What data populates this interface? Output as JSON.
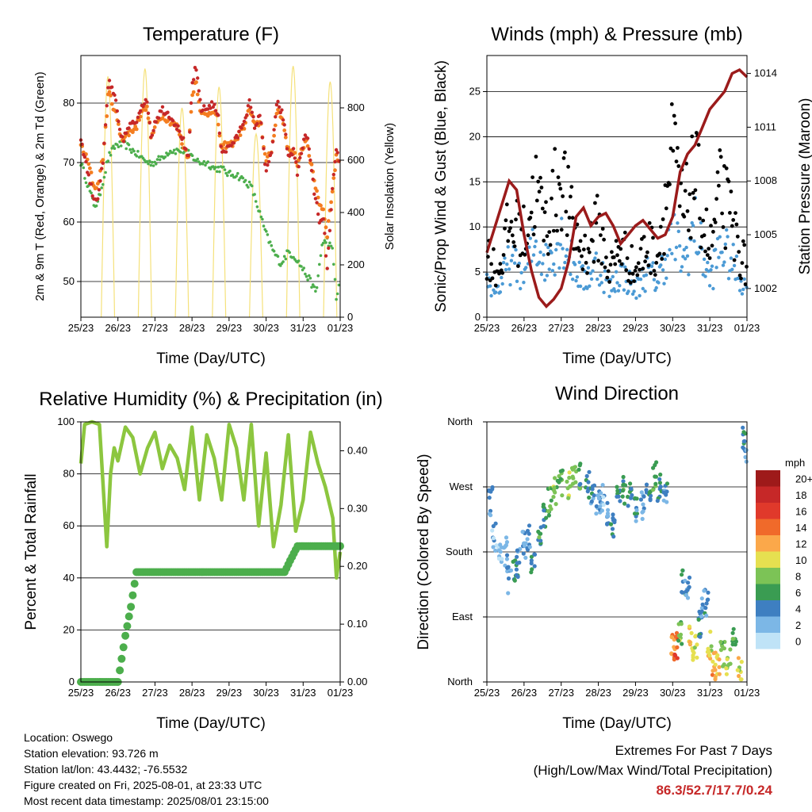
{
  "panels": {
    "temperature": {
      "title": "Temperature (F)",
      "ylabel": "2m & 9m T (Red, Orange) & 2m Td (Green)",
      "y2label": "Solar Insolation (Yellow)",
      "xlabel": "Time (Day/UTC)"
    },
    "winds": {
      "title": "Winds (mph) & Pressure (mb)",
      "ylabel": "Sonic/Prop Wind & Gust (Blue, Black)",
      "y2label": "Station Pressure (Maroon)",
      "xlabel": "Time (Day/UTC)"
    },
    "humidity": {
      "title": "Relative Humidity (%) & Precipitation (in)",
      "ylabel": "Percent & Total Rainfall",
      "xlabel": "Time (Day/UTC)"
    },
    "direction": {
      "title": "Wind Direction",
      "ylabel": "Direction (Colored By Speed)",
      "xlabel": "Time (Day/UTC)",
      "legend_title": "mph",
      "legend_labels": [
        "20+",
        "18",
        "16",
        "14",
        "12",
        "10",
        "8",
        "6",
        "4",
        "2",
        "0"
      ],
      "legend_colors": [
        "#9e1a1a",
        "#c62828",
        "#e0392b",
        "#f06a2a",
        "#fba84a",
        "#e6e050",
        "#7cc356",
        "#3a9c52",
        "#3e7fc1",
        "#7cb7e6",
        "#bfe3f7"
      ]
    }
  },
  "colors": {
    "temp_2m": "#c62828",
    "temp_9m": "#f47d20",
    "dewpoint": "#4cae4c",
    "solar": "#f5e17a",
    "wind": "#4b9ad5",
    "gust": "#000000",
    "pressure": "#9b1b1b",
    "rh": "#8cc63f",
    "precip": "#4cae4c"
  },
  "info": {
    "location": "Location: Oswego",
    "elevation": "Station elevation: 93.726 m",
    "latlon": "Station lat/lon: 43.4432; -76.5532",
    "created": "Figure created on Fri, 2025-08-01, at 23:33 UTC",
    "recent": "Most recent data timestamp: 2025/08/01 23:15:00"
  },
  "extremes": {
    "title": "Extremes For Past 7 Days",
    "subtitle": "(High/Low/Max Wind/Total Precipitation)",
    "values": "86.3/52.7/17.7/0.24"
  },
  "chart_data": [
    {
      "type": "line",
      "title": "Temperature (F)",
      "xlabel": "Time (Day/UTC)",
      "ylabel": "2m & 9m T (Red, Orange) & 2m Td (Green)",
      "y2label": "Solar Insolation (Yellow)",
      "x_ticks": [
        "25/23",
        "26/23",
        "27/23",
        "28/23",
        "29/23",
        "30/23",
        "31/23",
        "01/23"
      ],
      "ylim": [
        44,
        88
      ],
      "y_ticks": [
        50,
        60,
        70,
        80
      ],
      "y2lim": [
        0,
        1000
      ],
      "y2_ticks": [
        0,
        200,
        400,
        600,
        800
      ],
      "x_day_range": [
        0,
        7
      ],
      "series": [
        {
          "name": "2m T",
          "x": [
            0,
            0.2,
            0.35,
            0.45,
            0.6,
            0.75,
            0.85,
            0.95,
            1.05,
            1.15,
            1.3,
            1.5,
            1.65,
            1.8,
            1.9,
            2.0,
            2.2,
            2.4,
            2.6,
            2.75,
            2.9,
            3.0,
            3.1,
            3.25,
            3.4,
            3.55,
            3.7,
            3.8,
            3.9,
            4.05,
            4.2,
            4.4,
            4.55,
            4.7,
            4.85,
            5.0,
            5.15,
            5.3,
            5.45,
            5.6,
            5.75,
            5.85,
            5.95,
            6.1,
            6.2,
            6.3,
            6.45,
            6.55,
            6.65,
            6.8,
            6.9,
            7.0
          ],
          "y": [
            74,
            68,
            64,
            64,
            70,
            84,
            82,
            80,
            75,
            74,
            76,
            77,
            80,
            80,
            74,
            77,
            79,
            78,
            76,
            74,
            70,
            83,
            86,
            79,
            79,
            80,
            78,
            72,
            72,
            73,
            74,
            77,
            80,
            76,
            78,
            68,
            72,
            80,
            78,
            71,
            72,
            68,
            72,
            75,
            70,
            65,
            60,
            60,
            52,
            66,
            72,
            70
          ]
        },
        {
          "name": "9m T",
          "x": [
            0,
            0.2,
            0.35,
            0.45,
            0.6,
            0.75,
            0.85,
            0.95,
            1.05,
            1.15,
            1.3,
            1.5,
            1.65,
            1.8,
            1.9,
            2.0,
            2.2,
            2.4,
            2.6,
            2.75,
            2.9,
            3.0,
            3.1,
            3.25,
            3.4,
            3.55,
            3.7,
            3.8,
            3.9,
            4.05,
            4.2,
            4.4,
            4.55,
            4.7,
            4.85,
            5.0,
            5.15,
            5.3,
            5.45,
            5.6,
            5.75,
            5.85,
            5.95,
            6.1,
            6.2,
            6.3,
            6.45,
            6.55,
            6.65,
            6.8,
            6.9,
            7.0
          ],
          "y": [
            73,
            70,
            66,
            66,
            71,
            82,
            80,
            78,
            75,
            74,
            75,
            76,
            79,
            79,
            74,
            76,
            78,
            77,
            76,
            73,
            71,
            81,
            84,
            78,
            78,
            79,
            77,
            72,
            73,
            73,
            74,
            76,
            79,
            76,
            77,
            70,
            72,
            79,
            77,
            72,
            72,
            69,
            72,
            74,
            70,
            67,
            63,
            62,
            58,
            66,
            71,
            70
          ]
        },
        {
          "name": "2m Td",
          "x": [
            0,
            0.2,
            0.35,
            0.45,
            0.6,
            0.75,
            0.95,
            1.2,
            1.4,
            1.6,
            1.8,
            2.0,
            2.2,
            2.4,
            2.6,
            2.8,
            3.0,
            3.2,
            3.4,
            3.6,
            3.8,
            4.0,
            4.2,
            4.4,
            4.6,
            4.8,
            5.0,
            5.2,
            5.4,
            5.6,
            5.8,
            6.0,
            6.2,
            6.35,
            6.5,
            6.65,
            6.8,
            6.9,
            7.0
          ],
          "y": [
            70,
            66,
            63,
            63,
            67,
            71,
            73,
            73,
            72,
            71,
            70,
            70,
            71,
            72,
            72,
            72,
            71,
            70,
            70,
            69,
            69,
            68,
            68,
            67,
            66,
            62,
            58,
            55,
            53,
            55,
            54,
            52,
            50,
            48,
            56,
            57,
            55,
            47,
            50
          ]
        }
      ]
    },
    {
      "type": "scatter",
      "title": "Winds (mph) & Pressure (mb)",
      "xlabel": "Time (Day/UTC)",
      "ylabel": "Sonic/Prop Wind & Gust (Blue, Black)",
      "y2label": "Station Pressure (Maroon)",
      "x_ticks": [
        "25/23",
        "26/23",
        "27/23",
        "28/23",
        "29/23",
        "30/23",
        "31/23",
        "01/23"
      ],
      "ylim": [
        0,
        29
      ],
      "y_ticks": [
        0,
        5,
        10,
        15,
        20,
        25
      ],
      "y2lim": [
        1000.4,
        1015
      ],
      "y2_ticks": [
        1002,
        1005,
        1008,
        1011,
        1014
      ],
      "series": [
        {
          "name": "Station Pressure",
          "x": [
            0,
            0.3,
            0.6,
            0.8,
            1.0,
            1.2,
            1.4,
            1.6,
            1.8,
            2.0,
            2.2,
            2.4,
            2.6,
            2.8,
            3.0,
            3.2,
            3.4,
            3.6,
            3.8,
            4.0,
            4.2,
            4.4,
            4.6,
            4.8,
            5.0,
            5.2,
            5.4,
            5.6,
            5.8,
            6.0,
            6.2,
            6.4,
            6.6,
            6.8,
            7.0
          ],
          "y": [
            1004,
            1006,
            1008,
            1007.5,
            1005,
            1003,
            1001.5,
            1001,
            1001.4,
            1002,
            1003.5,
            1006,
            1006.5,
            1005.5,
            1006,
            1006.2,
            1005.5,
            1004.5,
            1005,
            1005.5,
            1005.8,
            1005.3,
            1004.8,
            1005,
            1006,
            1008.5,
            1009.5,
            1010,
            1011,
            1012,
            1012.5,
            1013,
            1014,
            1014.2,
            1013.8
          ]
        }
      ]
    },
    {
      "type": "line",
      "title": "Relative Humidity (%) & Precipitation (in)",
      "xlabel": "Time (Day/UTC)",
      "ylabel": "Percent & Total Rainfall",
      "x_ticks": [
        "25/23",
        "26/23",
        "27/23",
        "28/23",
        "29/23",
        "30/23",
        "31/23",
        "01/23"
      ],
      "ylim": [
        0,
        100
      ],
      "y_ticks": [
        0,
        20,
        40,
        60,
        80,
        100
      ],
      "y2lim": [
        0,
        0.45
      ],
      "y2_ticks": [
        0.0,
        0.1,
        0.2,
        0.3,
        0.4
      ],
      "series": [
        {
          "name": "Relative Humidity",
          "x": [
            0,
            0.1,
            0.3,
            0.5,
            0.7,
            0.8,
            0.9,
            1.0,
            1.2,
            1.4,
            1.6,
            1.8,
            2.0,
            2.2,
            2.4,
            2.6,
            2.8,
            3.0,
            3.2,
            3.4,
            3.6,
            3.8,
            4.0,
            4.2,
            4.4,
            4.6,
            4.8,
            5.0,
            5.2,
            5.4,
            5.6,
            5.8,
            6.0,
            6.2,
            6.4,
            6.6,
            6.8,
            6.9,
            7.0
          ],
          "y": [
            84,
            99,
            100,
            99,
            52,
            80,
            90,
            85,
            98,
            94,
            80,
            90,
            96,
            82,
            91,
            86,
            74,
            98,
            70,
            95,
            86,
            70,
            99,
            90,
            70,
            99,
            60,
            88,
            52,
            68,
            95,
            58,
            70,
            96,
            84,
            75,
            63,
            40,
            50
          ]
        },
        {
          "name": "Total Rainfall",
          "x": [
            0,
            0.5,
            1.0,
            1.2,
            1.35,
            1.5,
            2.0,
            3.0,
            4.0,
            5.0,
            5.5,
            5.65,
            5.85,
            6.0,
            7.0
          ],
          "y": [
            0,
            0,
            0,
            0.08,
            0.13,
            0.19,
            0.19,
            0.19,
            0.19,
            0.19,
            0.19,
            0.21,
            0.235,
            0.235,
            0.235
          ]
        }
      ]
    },
    {
      "type": "scatter",
      "title": "Wind Direction",
      "xlabel": "Time (Day/UTC)",
      "ylabel": "Direction (Colored By Speed)",
      "x_ticks": [
        "25/23",
        "26/23",
        "27/23",
        "28/23",
        "29/23",
        "30/23",
        "31/23",
        "01/23"
      ],
      "y_ticks": [
        "North",
        "East",
        "South",
        "West",
        "North"
      ],
      "ylim": [
        0,
        360
      ],
      "legend_title": "mph",
      "legend": [
        "20+",
        "18",
        "16",
        "14",
        "12",
        "10",
        "8",
        "6",
        "4",
        "2",
        "0"
      ],
      "points": [
        [
          0.1,
          250,
          3
        ],
        [
          0.2,
          200,
          2
        ],
        [
          0.35,
          175,
          1
        ],
        [
          0.5,
          180,
          2
        ],
        [
          0.6,
          140,
          3
        ],
        [
          0.75,
          150,
          6
        ],
        [
          0.85,
          165,
          4
        ],
        [
          1.0,
          190,
          3
        ],
        [
          1.1,
          200,
          3
        ],
        [
          1.25,
          170,
          5
        ],
        [
          1.4,
          210,
          6
        ],
        [
          1.55,
          230,
          5
        ],
        [
          1.7,
          250,
          7
        ],
        [
          1.85,
          265,
          8
        ],
        [
          2.0,
          275,
          7
        ],
        [
          2.2,
          270,
          9
        ],
        [
          2.35,
          280,
          7
        ],
        [
          2.5,
          285,
          6
        ],
        [
          2.7,
          275,
          5
        ],
        [
          2.85,
          260,
          4
        ],
        [
          3.0,
          250,
          3
        ],
        [
          3.1,
          255,
          2
        ],
        [
          3.25,
          230,
          3
        ],
        [
          3.4,
          220,
          4
        ],
        [
          3.55,
          250,
          5
        ],
        [
          3.7,
          265,
          6
        ],
        [
          3.85,
          255,
          5
        ],
        [
          4.0,
          235,
          4
        ],
        [
          4.2,
          245,
          3
        ],
        [
          4.35,
          265,
          5
        ],
        [
          4.5,
          285,
          6
        ],
        [
          4.65,
          270,
          5
        ],
        [
          4.8,
          260,
          4
        ],
        [
          5.0,
          55,
          12
        ],
        [
          5.1,
          50,
          15
        ],
        [
          5.2,
          70,
          8
        ],
        [
          5.3,
          140,
          4
        ],
        [
          5.4,
          130,
          3
        ],
        [
          5.5,
          60,
          11
        ],
        [
          5.6,
          45,
          10
        ],
        [
          5.7,
          80,
          4
        ],
        [
          5.8,
          100,
          3
        ],
        [
          5.9,
          110,
          4
        ],
        [
          6.0,
          50,
          10
        ],
        [
          6.1,
          25,
          12
        ],
        [
          6.2,
          20,
          11
        ],
        [
          6.35,
          40,
          8
        ],
        [
          6.5,
          30,
          9
        ],
        [
          6.65,
          60,
          6
        ],
        [
          6.8,
          15,
          10
        ],
        [
          6.9,
          340,
          5
        ],
        [
          7.0,
          320,
          3
        ]
      ]
    }
  ]
}
